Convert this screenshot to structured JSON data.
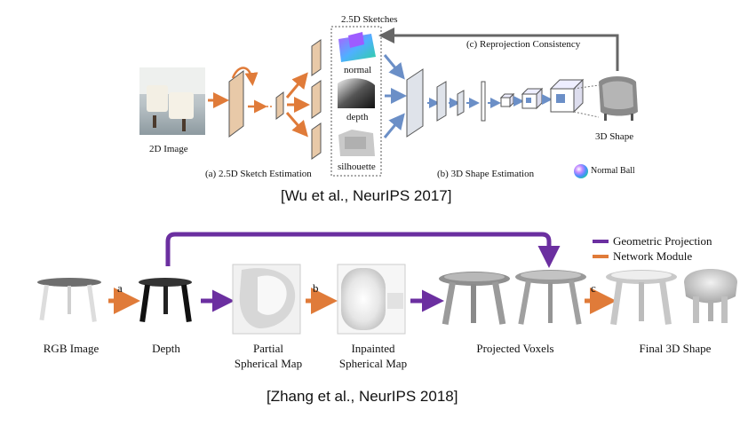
{
  "top": {
    "input_label": "2D Image",
    "sketches_title": "2.5D Sketches",
    "normal_label": "normal",
    "depth_label": "depth",
    "silhouette_label": "silhouette",
    "stage_a_label": "(a) 2.5D Sketch Estimation",
    "stage_b_label": "(b) 3D Shape Estimation",
    "reprojection_label": "(c) Reprojection Consistency",
    "output_label": "3D Shape",
    "normal_ball_label": "Normal Ball",
    "citation": "[Wu et al., NeurIPS 2017]"
  },
  "bottom": {
    "legend": [
      {
        "label": "Geometric Projection",
        "color": "#6b2fa0"
      },
      {
        "label": "Network Module",
        "color": "#e07b39"
      }
    ],
    "step_labels": {
      "a": "a",
      "b": "b",
      "c": "c"
    },
    "stages": [
      {
        "line1": "RGB Image",
        "line2": ""
      },
      {
        "line1": "Depth",
        "line2": ""
      },
      {
        "line1": "Partial",
        "line2": "Spherical Map"
      },
      {
        "line1": "Inpainted",
        "line2": "Spherical Map"
      },
      {
        "line1": "Projected Voxels",
        "line2": ""
      },
      {
        "line1": "Final 3D Shape",
        "line2": ""
      }
    ],
    "citation": "[Zhang et al., NeurIPS 2018]"
  },
  "colors": {
    "network": "#e07b39",
    "projection": "#6b2fa0",
    "blue_arrow": "#6b8fc7",
    "layer_tan": "#e8c9a8",
    "layer_gray": "#dfe3ea"
  }
}
